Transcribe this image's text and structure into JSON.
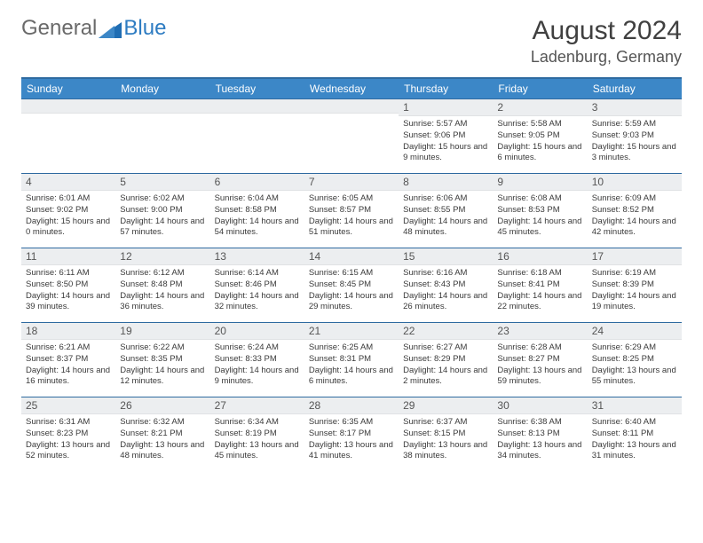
{
  "logo": {
    "text1": "General",
    "text2": "Blue"
  },
  "title": "August 2024",
  "location": "Ladenburg, Germany",
  "colors": {
    "header_bg": "#3c87c7",
    "header_border": "#2e6aa0",
    "daynum_bg": "#eceef0",
    "text": "#3a3a3a"
  },
  "dayNames": [
    "Sunday",
    "Monday",
    "Tuesday",
    "Wednesday",
    "Thursday",
    "Friday",
    "Saturday"
  ],
  "weeks": [
    [
      {
        "n": "",
        "sr": "",
        "ss": "",
        "dl": ""
      },
      {
        "n": "",
        "sr": "",
        "ss": "",
        "dl": ""
      },
      {
        "n": "",
        "sr": "",
        "ss": "",
        "dl": ""
      },
      {
        "n": "",
        "sr": "",
        "ss": "",
        "dl": ""
      },
      {
        "n": "1",
        "sr": "Sunrise: 5:57 AM",
        "ss": "Sunset: 9:06 PM",
        "dl": "Daylight: 15 hours and 9 minutes."
      },
      {
        "n": "2",
        "sr": "Sunrise: 5:58 AM",
        "ss": "Sunset: 9:05 PM",
        "dl": "Daylight: 15 hours and 6 minutes."
      },
      {
        "n": "3",
        "sr": "Sunrise: 5:59 AM",
        "ss": "Sunset: 9:03 PM",
        "dl": "Daylight: 15 hours and 3 minutes."
      }
    ],
    [
      {
        "n": "4",
        "sr": "Sunrise: 6:01 AM",
        "ss": "Sunset: 9:02 PM",
        "dl": "Daylight: 15 hours and 0 minutes."
      },
      {
        "n": "5",
        "sr": "Sunrise: 6:02 AM",
        "ss": "Sunset: 9:00 PM",
        "dl": "Daylight: 14 hours and 57 minutes."
      },
      {
        "n": "6",
        "sr": "Sunrise: 6:04 AM",
        "ss": "Sunset: 8:58 PM",
        "dl": "Daylight: 14 hours and 54 minutes."
      },
      {
        "n": "7",
        "sr": "Sunrise: 6:05 AM",
        "ss": "Sunset: 8:57 PM",
        "dl": "Daylight: 14 hours and 51 minutes."
      },
      {
        "n": "8",
        "sr": "Sunrise: 6:06 AM",
        "ss": "Sunset: 8:55 PM",
        "dl": "Daylight: 14 hours and 48 minutes."
      },
      {
        "n": "9",
        "sr": "Sunrise: 6:08 AM",
        "ss": "Sunset: 8:53 PM",
        "dl": "Daylight: 14 hours and 45 minutes."
      },
      {
        "n": "10",
        "sr": "Sunrise: 6:09 AM",
        "ss": "Sunset: 8:52 PM",
        "dl": "Daylight: 14 hours and 42 minutes."
      }
    ],
    [
      {
        "n": "11",
        "sr": "Sunrise: 6:11 AM",
        "ss": "Sunset: 8:50 PM",
        "dl": "Daylight: 14 hours and 39 minutes."
      },
      {
        "n": "12",
        "sr": "Sunrise: 6:12 AM",
        "ss": "Sunset: 8:48 PM",
        "dl": "Daylight: 14 hours and 36 minutes."
      },
      {
        "n": "13",
        "sr": "Sunrise: 6:14 AM",
        "ss": "Sunset: 8:46 PM",
        "dl": "Daylight: 14 hours and 32 minutes."
      },
      {
        "n": "14",
        "sr": "Sunrise: 6:15 AM",
        "ss": "Sunset: 8:45 PM",
        "dl": "Daylight: 14 hours and 29 minutes."
      },
      {
        "n": "15",
        "sr": "Sunrise: 6:16 AM",
        "ss": "Sunset: 8:43 PM",
        "dl": "Daylight: 14 hours and 26 minutes."
      },
      {
        "n": "16",
        "sr": "Sunrise: 6:18 AM",
        "ss": "Sunset: 8:41 PM",
        "dl": "Daylight: 14 hours and 22 minutes."
      },
      {
        "n": "17",
        "sr": "Sunrise: 6:19 AM",
        "ss": "Sunset: 8:39 PM",
        "dl": "Daylight: 14 hours and 19 minutes."
      }
    ],
    [
      {
        "n": "18",
        "sr": "Sunrise: 6:21 AM",
        "ss": "Sunset: 8:37 PM",
        "dl": "Daylight: 14 hours and 16 minutes."
      },
      {
        "n": "19",
        "sr": "Sunrise: 6:22 AM",
        "ss": "Sunset: 8:35 PM",
        "dl": "Daylight: 14 hours and 12 minutes."
      },
      {
        "n": "20",
        "sr": "Sunrise: 6:24 AM",
        "ss": "Sunset: 8:33 PM",
        "dl": "Daylight: 14 hours and 9 minutes."
      },
      {
        "n": "21",
        "sr": "Sunrise: 6:25 AM",
        "ss": "Sunset: 8:31 PM",
        "dl": "Daylight: 14 hours and 6 minutes."
      },
      {
        "n": "22",
        "sr": "Sunrise: 6:27 AM",
        "ss": "Sunset: 8:29 PM",
        "dl": "Daylight: 14 hours and 2 minutes."
      },
      {
        "n": "23",
        "sr": "Sunrise: 6:28 AM",
        "ss": "Sunset: 8:27 PM",
        "dl": "Daylight: 13 hours and 59 minutes."
      },
      {
        "n": "24",
        "sr": "Sunrise: 6:29 AM",
        "ss": "Sunset: 8:25 PM",
        "dl": "Daylight: 13 hours and 55 minutes."
      }
    ],
    [
      {
        "n": "25",
        "sr": "Sunrise: 6:31 AM",
        "ss": "Sunset: 8:23 PM",
        "dl": "Daylight: 13 hours and 52 minutes."
      },
      {
        "n": "26",
        "sr": "Sunrise: 6:32 AM",
        "ss": "Sunset: 8:21 PM",
        "dl": "Daylight: 13 hours and 48 minutes."
      },
      {
        "n": "27",
        "sr": "Sunrise: 6:34 AM",
        "ss": "Sunset: 8:19 PM",
        "dl": "Daylight: 13 hours and 45 minutes."
      },
      {
        "n": "28",
        "sr": "Sunrise: 6:35 AM",
        "ss": "Sunset: 8:17 PM",
        "dl": "Daylight: 13 hours and 41 minutes."
      },
      {
        "n": "29",
        "sr": "Sunrise: 6:37 AM",
        "ss": "Sunset: 8:15 PM",
        "dl": "Daylight: 13 hours and 38 minutes."
      },
      {
        "n": "30",
        "sr": "Sunrise: 6:38 AM",
        "ss": "Sunset: 8:13 PM",
        "dl": "Daylight: 13 hours and 34 minutes."
      },
      {
        "n": "31",
        "sr": "Sunrise: 6:40 AM",
        "ss": "Sunset: 8:11 PM",
        "dl": "Daylight: 13 hours and 31 minutes."
      }
    ]
  ]
}
